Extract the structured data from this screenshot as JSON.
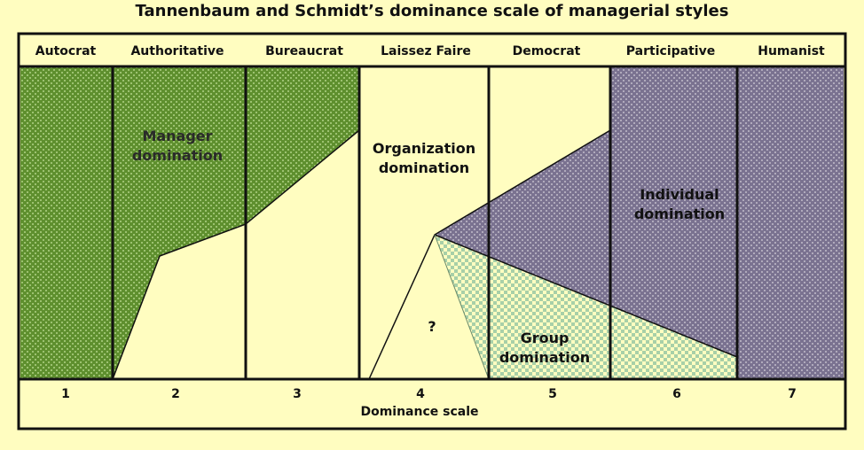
{
  "title": "Tannenbaum and Schmidt’s dominance scale of managerial styles",
  "styles": [
    "Autocrat",
    "Authoritative",
    "Bureaucrat",
    "Laissez Faire",
    "Democrat",
    "Participative",
    "Humanist"
  ],
  "scale_numbers": [
    "1",
    "2",
    "3",
    "4",
    "5",
    "6",
    "7"
  ],
  "scale_label": "Dominance scale",
  "regions": {
    "manager": {
      "line1": "Manager",
      "line2": "domination"
    },
    "organization": {
      "line1": "Organization",
      "line2": "domination"
    },
    "individual": {
      "line1": "Individual",
      "line2": "domination"
    },
    "group": {
      "line1": "Group",
      "line2": "domination"
    },
    "unknown": "?"
  },
  "colors": {
    "background": "#fffdc0",
    "manager": "#5e8f2e",
    "individual": "#7e7690",
    "group": "#b8d8b0",
    "border": "#111111"
  }
}
